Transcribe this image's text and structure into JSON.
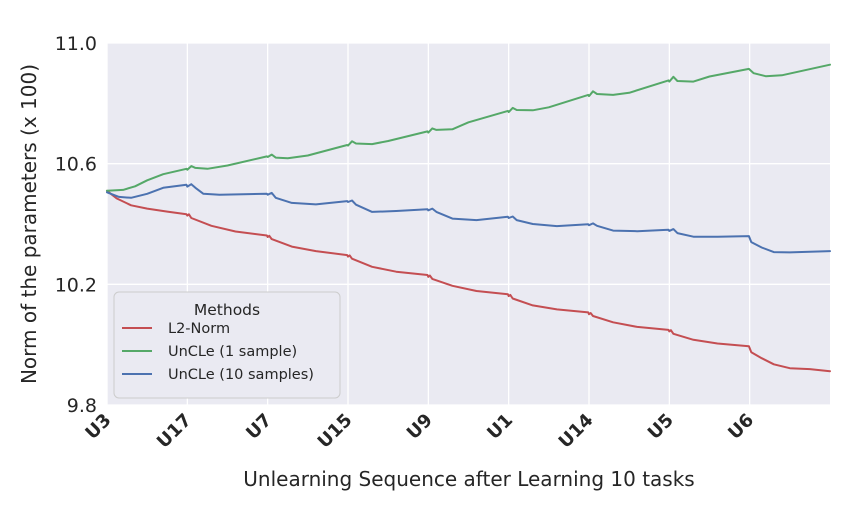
{
  "chart_data": {
    "type": "line",
    "title": "",
    "xlabel": "Unlearning Sequence after Learning 10 tasks",
    "ylabel": "Norm of the parameters (x 100)",
    "x_tick_labels": [
      "U3",
      "U17",
      "U7",
      "U15",
      "U9",
      "U1",
      "U14",
      "U5",
      "U6"
    ],
    "x_range": [
      0,
      9
    ],
    "ylim": [
      9.8,
      11.0
    ],
    "y_ticks": [
      9.8,
      10.2,
      10.6,
      11.0
    ],
    "y_tick_labels": [
      "9.8",
      "10.2",
      "10.6",
      "11.0"
    ],
    "grid": true,
    "legend": {
      "title": "Methods",
      "placement": "lower-left"
    },
    "series": [
      {
        "name": "L2-Norm",
        "color": "#c44e52",
        "points": [
          [
            0,
            10.51
          ],
          [
            0.12,
            10.485
          ],
          [
            0.3,
            10.462
          ],
          [
            0.5,
            10.451
          ],
          [
            0.75,
            10.441
          ],
          [
            0.99,
            10.432
          ],
          [
            1.0,
            10.428
          ],
          [
            1.02,
            10.432
          ],
          [
            1.05,
            10.42
          ],
          [
            1.3,
            10.394
          ],
          [
            1.6,
            10.375
          ],
          [
            1.99,
            10.362
          ],
          [
            2.0,
            10.357
          ],
          [
            2.02,
            10.361
          ],
          [
            2.05,
            10.35
          ],
          [
            2.3,
            10.325
          ],
          [
            2.6,
            10.31
          ],
          [
            2.99,
            10.297
          ],
          [
            3.0,
            10.292
          ],
          [
            3.02,
            10.296
          ],
          [
            3.05,
            10.285
          ],
          [
            3.3,
            10.258
          ],
          [
            3.6,
            10.242
          ],
          [
            3.99,
            10.231
          ],
          [
            4.0,
            10.225
          ],
          [
            4.02,
            10.229
          ],
          [
            4.05,
            10.218
          ],
          [
            4.3,
            10.195
          ],
          [
            4.6,
            10.178
          ],
          [
            4.99,
            10.167
          ],
          [
            5.0,
            10.161
          ],
          [
            5.02,
            10.165
          ],
          [
            5.05,
            10.153
          ],
          [
            5.3,
            10.13
          ],
          [
            5.6,
            10.117
          ],
          [
            5.99,
            10.107
          ],
          [
            6.0,
            10.101
          ],
          [
            6.02,
            10.105
          ],
          [
            6.05,
            10.095
          ],
          [
            6.3,
            10.074
          ],
          [
            6.6,
            10.059
          ],
          [
            6.99,
            10.049
          ],
          [
            7.0,
            10.044
          ],
          [
            7.02,
            10.048
          ],
          [
            7.05,
            10.036
          ],
          [
            7.3,
            10.016
          ],
          [
            7.6,
            10.004
          ],
          [
            7.99,
            9.995
          ],
          [
            8.02,
            9.975
          ],
          [
            8.15,
            9.955
          ],
          [
            8.3,
            9.935
          ],
          [
            8.5,
            9.922
          ],
          [
            8.75,
            9.919
          ],
          [
            9.0,
            9.912
          ]
        ]
      },
      {
        "name": "UnCLe (1 sample)",
        "color": "#55a868",
        "points": [
          [
            0,
            10.51
          ],
          [
            0.2,
            10.513
          ],
          [
            0.35,
            10.525
          ],
          [
            0.5,
            10.545
          ],
          [
            0.7,
            10.565
          ],
          [
            0.99,
            10.583
          ],
          [
            1.0,
            10.58
          ],
          [
            1.05,
            10.592
          ],
          [
            1.1,
            10.586
          ],
          [
            1.25,
            10.583
          ],
          [
            1.5,
            10.594
          ],
          [
            1.99,
            10.624
          ],
          [
            2.0,
            10.622
          ],
          [
            2.05,
            10.63
          ],
          [
            2.1,
            10.62
          ],
          [
            2.25,
            10.618
          ],
          [
            2.5,
            10.627
          ],
          [
            2.99,
            10.662
          ],
          [
            3.0,
            10.66
          ],
          [
            3.05,
            10.674
          ],
          [
            3.1,
            10.667
          ],
          [
            3.3,
            10.665
          ],
          [
            3.5,
            10.675
          ],
          [
            3.99,
            10.707
          ],
          [
            4.0,
            10.703
          ],
          [
            4.05,
            10.717
          ],
          [
            4.1,
            10.712
          ],
          [
            4.3,
            10.714
          ],
          [
            4.5,
            10.737
          ],
          [
            4.99,
            10.775
          ],
          [
            5.0,
            10.771
          ],
          [
            5.05,
            10.785
          ],
          [
            5.1,
            10.778
          ],
          [
            5.3,
            10.777
          ],
          [
            5.5,
            10.787
          ],
          [
            5.99,
            10.828
          ],
          [
            6.0,
            10.824
          ],
          [
            6.05,
            10.84
          ],
          [
            6.1,
            10.831
          ],
          [
            6.3,
            10.828
          ],
          [
            6.5,
            10.835
          ],
          [
            6.99,
            10.876
          ],
          [
            7.0,
            10.872
          ],
          [
            7.05,
            10.888
          ],
          [
            7.1,
            10.874
          ],
          [
            7.3,
            10.872
          ],
          [
            7.5,
            10.889
          ],
          [
            7.99,
            10.914
          ],
          [
            8.05,
            10.9
          ],
          [
            8.2,
            10.89
          ],
          [
            8.4,
            10.893
          ],
          [
            9.0,
            10.928
          ]
        ]
      },
      {
        "name": "UnCLe (10 samples)",
        "color": "#4c72b0",
        "points": [
          [
            0,
            10.505
          ],
          [
            0.15,
            10.49
          ],
          [
            0.3,
            10.487
          ],
          [
            0.5,
            10.5
          ],
          [
            0.7,
            10.52
          ],
          [
            0.99,
            10.53
          ],
          [
            1.0,
            10.524
          ],
          [
            1.05,
            10.532
          ],
          [
            1.1,
            10.52
          ],
          [
            1.2,
            10.5
          ],
          [
            1.4,
            10.497
          ],
          [
            1.99,
            10.5
          ],
          [
            2.0,
            10.497
          ],
          [
            2.05,
            10.503
          ],
          [
            2.1,
            10.487
          ],
          [
            2.3,
            10.47
          ],
          [
            2.6,
            10.465
          ],
          [
            2.99,
            10.476
          ],
          [
            3.0,
            10.473
          ],
          [
            3.05,
            10.478
          ],
          [
            3.1,
            10.464
          ],
          [
            3.3,
            10.44
          ],
          [
            3.6,
            10.443
          ],
          [
            3.99,
            10.449
          ],
          [
            4.0,
            10.445
          ],
          [
            4.05,
            10.451
          ],
          [
            4.1,
            10.44
          ],
          [
            4.3,
            10.418
          ],
          [
            4.6,
            10.413
          ],
          [
            4.99,
            10.424
          ],
          [
            5.0,
            10.42
          ],
          [
            5.05,
            10.425
          ],
          [
            5.1,
            10.413
          ],
          [
            5.3,
            10.4
          ],
          [
            5.6,
            10.393
          ],
          [
            5.99,
            10.399
          ],
          [
            6.0,
            10.396
          ],
          [
            6.05,
            10.402
          ],
          [
            6.1,
            10.394
          ],
          [
            6.3,
            10.378
          ],
          [
            6.6,
            10.376
          ],
          [
            6.99,
            10.381
          ],
          [
            7.0,
            10.377
          ],
          [
            7.05,
            10.383
          ],
          [
            7.1,
            10.37
          ],
          [
            7.3,
            10.358
          ],
          [
            7.6,
            10.358
          ],
          [
            7.99,
            10.36
          ],
          [
            8.02,
            10.34
          ],
          [
            8.15,
            10.322
          ],
          [
            8.3,
            10.307
          ],
          [
            8.5,
            10.306
          ],
          [
            9.0,
            10.31
          ]
        ]
      }
    ]
  }
}
